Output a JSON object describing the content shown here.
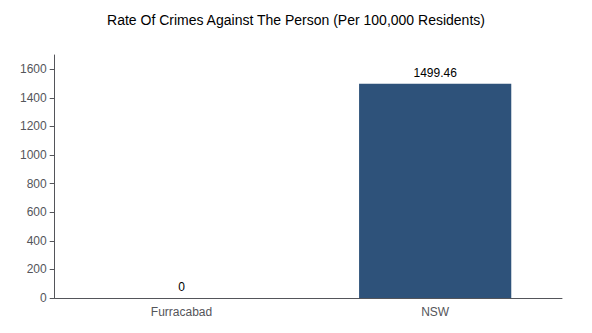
{
  "chart_data": {
    "type": "bar",
    "title": "Rate Of Crimes Against The Person (Per 100,000 Residents)",
    "categories": [
      "Furracabad",
      "NSW"
    ],
    "values": [
      0,
      1499.46
    ],
    "color": "#2e527a",
    "ylim": [
      0,
      1700
    ],
    "yticks": [
      0,
      200,
      400,
      600,
      800,
      1000,
      1200,
      1400,
      1600
    ],
    "grid": false,
    "data_labels": true
  }
}
